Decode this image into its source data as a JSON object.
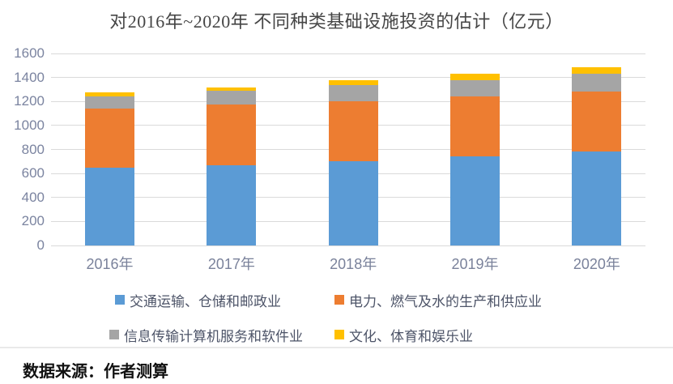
{
  "title": "对2016年~2020年 不同种类基础设施投资的估计（亿元）",
  "footer": {
    "source": "数据来源：作者测算"
  },
  "chart_data": {
    "type": "bar",
    "stacked": true,
    "title": "对2016年~2020年 不同种类基础设施投资的估计（亿元）",
    "categories": [
      "2016年",
      "2017年",
      "2018年",
      "2019年",
      "2020年"
    ],
    "series": [
      {
        "name": "交通运输、仓储和邮政业",
        "color": "#5B9BD5",
        "values": [
          645,
          670,
          705,
          745,
          785
        ]
      },
      {
        "name": "电力、燃气及水的生产和供应业",
        "color": "#ED7D31",
        "values": [
          495,
          505,
          500,
          500,
          495
        ]
      },
      {
        "name": "信息传输计算机服务和软件业",
        "color": "#A5A5A5",
        "values": [
          105,
          115,
          130,
          130,
          150
        ]
      },
      {
        "name": "文化、体育和娱乐业",
        "color": "#FFC000",
        "values": [
          30,
          30,
          40,
          55,
          55
        ]
      }
    ],
    "totals": [
      1275,
      1320,
      1375,
      1430,
      1485
    ],
    "ylim": [
      0,
      1600
    ],
    "yticks": [
      0,
      200,
      400,
      600,
      800,
      1000,
      1200,
      1400,
      1600
    ],
    "xlabel": "",
    "ylabel": "",
    "grid": true,
    "legend_position": "bottom",
    "colors": {
      "gridline": "#dadada",
      "y_label": "#7b84a0",
      "x_label": "#7a829b",
      "title": "#454545",
      "legend_text": "#4d5468",
      "footer_text": "#111111"
    }
  }
}
